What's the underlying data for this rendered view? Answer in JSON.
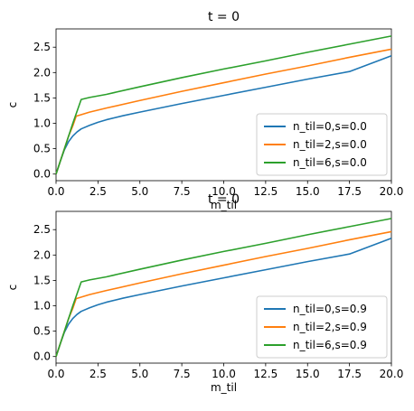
{
  "figure": {
    "background": "#ffffff",
    "series_colors": [
      "#1f77b4",
      "#ff7f0e",
      "#2ca02c"
    ]
  },
  "chart_data": [
    {
      "type": "line",
      "title": "t = 0",
      "xlabel": "m_til",
      "ylabel": "c",
      "xlim": [
        0,
        20
      ],
      "ylim": [
        -0.13,
        2.86
      ],
      "xticks": [
        0.0,
        2.5,
        5.0,
        7.5,
        10.0,
        12.5,
        15.0,
        17.5,
        20.0
      ],
      "xtick_labels": [
        "0.0",
        "2.5",
        "5.0",
        "7.5",
        "10.0",
        "12.5",
        "15.0",
        "17.5",
        "20.0"
      ],
      "yticks": [
        0.0,
        0.5,
        1.0,
        1.5,
        2.0,
        2.5
      ],
      "ytick_labels": [
        "0.0",
        "0.5",
        "1.0",
        "1.5",
        "2.0",
        "2.5"
      ],
      "grid": false,
      "legend_position": "lower-right",
      "series": [
        {
          "name": "n_til=0,s=0.0",
          "color": "#1f77b4",
          "x": [
            0,
            0.25,
            0.5,
            0.75,
            1.0,
            1.25,
            1.5,
            2.0,
            2.5,
            3.0,
            4.0,
            5.0,
            7.5,
            10.0,
            12.5,
            15.0,
            17.5,
            20.0
          ],
          "y": [
            0.0,
            0.25,
            0.48,
            0.64,
            0.75,
            0.83,
            0.89,
            0.96,
            1.02,
            1.07,
            1.15,
            1.22,
            1.39,
            1.55,
            1.71,
            1.87,
            2.02,
            2.33
          ]
        },
        {
          "name": "n_til=2,s=0.0",
          "color": "#ff7f0e",
          "x": [
            0,
            0.25,
            0.5,
            0.75,
            1.0,
            1.2,
            2.0,
            3.0,
            5.0,
            7.5,
            10.0,
            12.5,
            15.0,
            17.5,
            20.0
          ],
          "y": [
            0.0,
            0.25,
            0.5,
            0.75,
            0.95,
            1.14,
            1.22,
            1.3,
            1.45,
            1.63,
            1.8,
            1.97,
            2.13,
            2.3,
            2.46
          ]
        },
        {
          "name": "n_til=6,s=0.0",
          "color": "#2ca02c",
          "x": [
            0,
            0.5,
            1.0,
            1.5,
            2.0,
            3.0,
            5.0,
            7.5,
            10.0,
            12.5,
            15.0,
            17.5,
            20.0
          ],
          "y": [
            0.0,
            0.5,
            1.0,
            1.47,
            1.51,
            1.57,
            1.72,
            1.9,
            2.07,
            2.23,
            2.4,
            2.56,
            2.72
          ]
        }
      ]
    },
    {
      "type": "line",
      "title": "t = 0",
      "xlabel": "m_til",
      "ylabel": "c",
      "xlim": [
        0,
        20
      ],
      "ylim": [
        -0.13,
        2.86
      ],
      "xticks": [
        0.0,
        2.5,
        5.0,
        7.5,
        10.0,
        12.5,
        15.0,
        17.5,
        20.0
      ],
      "xtick_labels": [
        "0.0",
        "2.5",
        "5.0",
        "7.5",
        "10.0",
        "12.5",
        "15.0",
        "17.5",
        "20.0"
      ],
      "yticks": [
        0.0,
        0.5,
        1.0,
        1.5,
        2.0,
        2.5
      ],
      "ytick_labels": [
        "0.0",
        "0.5",
        "1.0",
        "1.5",
        "2.0",
        "2.5"
      ],
      "grid": false,
      "legend_position": "lower-right",
      "series": [
        {
          "name": "n_til=0,s=0.9",
          "color": "#1f77b4",
          "x": [
            0,
            0.25,
            0.5,
            0.75,
            1.0,
            1.25,
            1.5,
            2.0,
            2.5,
            3.0,
            4.0,
            5.0,
            7.5,
            10.0,
            12.5,
            15.0,
            17.5,
            20.0
          ],
          "y": [
            0.0,
            0.25,
            0.48,
            0.64,
            0.75,
            0.83,
            0.89,
            0.96,
            1.02,
            1.07,
            1.15,
            1.22,
            1.39,
            1.55,
            1.71,
            1.87,
            2.02,
            2.33
          ]
        },
        {
          "name": "n_til=2,s=0.9",
          "color": "#ff7f0e",
          "x": [
            0,
            0.25,
            0.5,
            0.75,
            1.0,
            1.2,
            2.0,
            3.0,
            5.0,
            7.5,
            10.0,
            12.5,
            15.0,
            17.5,
            20.0
          ],
          "y": [
            0.0,
            0.25,
            0.5,
            0.75,
            0.95,
            1.14,
            1.22,
            1.3,
            1.45,
            1.63,
            1.8,
            1.97,
            2.13,
            2.3,
            2.46
          ]
        },
        {
          "name": "n_til=6,s=0.9",
          "color": "#2ca02c",
          "x": [
            0,
            0.5,
            1.0,
            1.5,
            2.0,
            3.0,
            5.0,
            7.5,
            10.0,
            12.5,
            15.0,
            17.5,
            20.0
          ],
          "y": [
            0.0,
            0.5,
            1.0,
            1.47,
            1.51,
            1.57,
            1.72,
            1.9,
            2.07,
            2.23,
            2.4,
            2.56,
            2.72
          ]
        }
      ]
    }
  ]
}
